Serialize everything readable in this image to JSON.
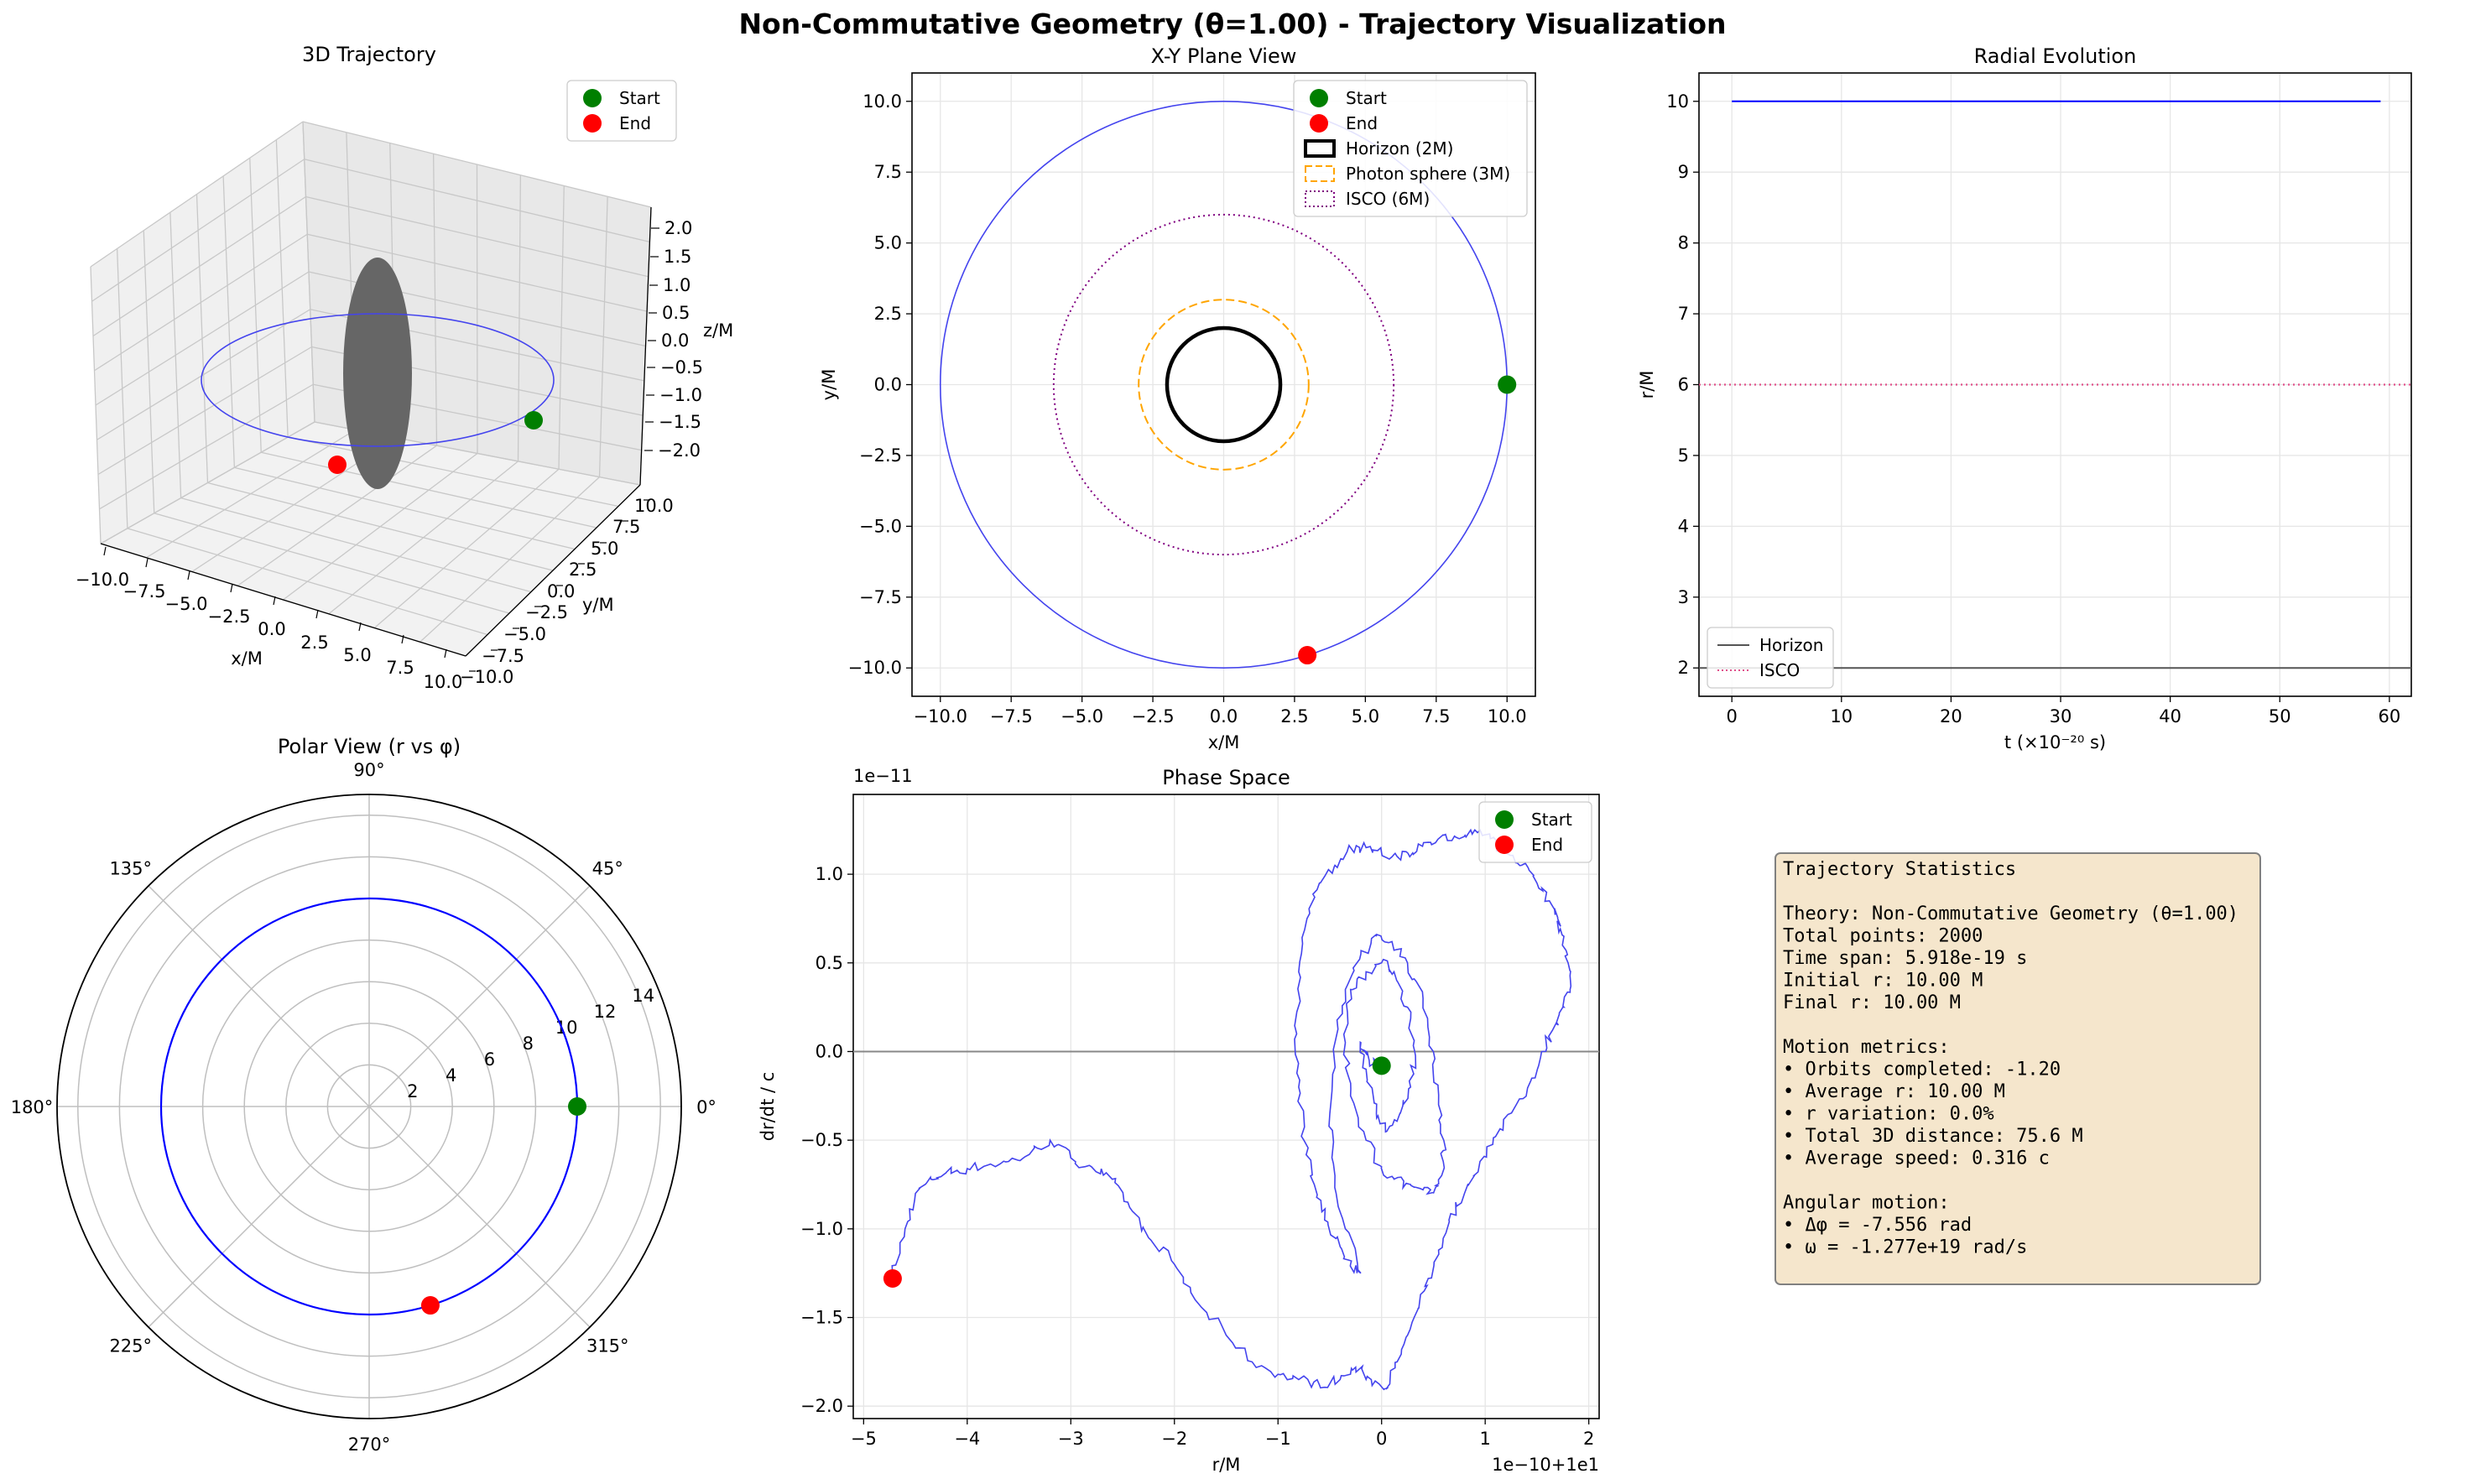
{
  "suptitle": "Non-Commutative Geometry (θ=1.00) - Trajectory Visualization",
  "colors": {
    "trajectory": "#4444ee",
    "start": "#007f00",
    "end": "#ff0000",
    "horizon": "#000000",
    "photon_sphere": "#ffa500",
    "isco": "#800080",
    "isco_radial": "#e0508a",
    "horizon_radial": "#555555",
    "grid": "#e6e6e6",
    "stats_bg": "#f5e6cc",
    "black_hole": "#666666"
  },
  "chart_data": [
    {
      "id": "traj3d",
      "type": "scatter",
      "title": "3D Trajectory",
      "xlabel": "x/M",
      "ylabel": "y/M",
      "zlabel": "z/M",
      "xticks": [
        "−10.0",
        "−7.5",
        "−5.0",
        "−2.5",
        "0.0",
        "2.5",
        "5.0",
        "7.5",
        "10.0"
      ],
      "yticks": [
        "−10.0",
        "−7.5",
        "−5.0",
        "−2.5",
        "0.0",
        "2.5",
        "5.0",
        "7.5",
        "10.0"
      ],
      "zticks": [
        "−2.0",
        "−1.5",
        "−1.0",
        "−0.5",
        "0.0",
        "0.5",
        "1.0",
        "1.5",
        "2.0"
      ],
      "xlim": [
        -10,
        10
      ],
      "ylim": [
        -10,
        10
      ],
      "zlim": [
        -2,
        2
      ],
      "orbit_radius": 10,
      "start": {
        "x": 10,
        "y": 0,
        "z": 0
      },
      "end": {
        "x": 2.95,
        "y": -9.55,
        "z": 0
      },
      "legend": [
        "Start",
        "End"
      ]
    },
    {
      "id": "xy",
      "type": "line",
      "title": "X-Y Plane View",
      "xlabel": "x/M",
      "ylabel": "y/M",
      "xticks": [
        "−10.0",
        "−7.5",
        "−5.0",
        "−2.5",
        "0.0",
        "2.5",
        "5.0",
        "7.5",
        "10.0"
      ],
      "yticks": [
        "−10.0",
        "−7.5",
        "−5.0",
        "−2.5",
        "0.0",
        "2.5",
        "5.0",
        "7.5",
        "10.0"
      ],
      "xlim": [
        -11,
        11
      ],
      "ylim": [
        -11,
        11
      ],
      "orbit_radius": 10,
      "horizon_radius": 2,
      "photon_radius": 3,
      "isco_radius": 6,
      "start": {
        "x": 10,
        "y": 0
      },
      "end": {
        "x": 2.95,
        "y": -9.55
      },
      "legend": [
        "Start",
        "End",
        "Horizon (2M)",
        "Photon sphere (3M)",
        "ISCO (6M)"
      ]
    },
    {
      "id": "radial",
      "type": "line",
      "title": "Radial Evolution",
      "xlabel": "t (×10⁻²⁰ s)",
      "ylabel": "r/M",
      "xticks": [
        "0",
        "10",
        "20",
        "30",
        "40",
        "50",
        "60"
      ],
      "yticks": [
        "2",
        "3",
        "4",
        "5",
        "6",
        "7",
        "8",
        "9",
        "10"
      ],
      "xlim": [
        -3,
        62
      ],
      "ylim": [
        1.6,
        10.4
      ],
      "series": [
        {
          "name": "",
          "x": [
            0,
            59.2
          ],
          "y": [
            10,
            10
          ]
        },
        {
          "name": "Horizon",
          "x": [
            -3,
            62
          ],
          "y": [
            2,
            2
          ]
        },
        {
          "name": "ISCO",
          "x": [
            -3,
            62
          ],
          "y": [
            6,
            6
          ]
        }
      ],
      "legend": [
        "Horizon",
        "ISCO"
      ]
    },
    {
      "id": "polar",
      "type": "line",
      "title": "Polar View (r vs φ)",
      "angle_labels": [
        "0°",
        "45°",
        "90°",
        "135°",
        "180°",
        "225°",
        "270°",
        "315°"
      ],
      "radial_ticks": [
        "2",
        "4",
        "6",
        "8",
        "10",
        "12",
        "14"
      ],
      "rmax": 15,
      "r": 10,
      "phi_start_deg": 0,
      "phi_end_deg": -432.9,
      "end_phi_deg": -72.9
    },
    {
      "id": "phase",
      "type": "line",
      "title": "Phase Space",
      "xlabel": "r/M",
      "ylabel": "dr/dt / c",
      "x_offset_label": "1e−10+1e1",
      "y_offset_label": "1e−11",
      "xticks": [
        "−5",
        "−4",
        "−3",
        "−2",
        "−1",
        "0",
        "1",
        "2"
      ],
      "yticks": [
        "−2.0",
        "−1.5",
        "−1.0",
        "−0.5",
        "0.0",
        "0.5",
        "1.0"
      ],
      "xlim": [
        -5.1,
        2.1
      ],
      "ylim": [
        -2.07,
        1.45
      ],
      "x": [
        -4.72,
        -4.6,
        -4.5,
        -4.35,
        -4.2,
        -4.0,
        -3.8,
        -3.6,
        -3.4,
        -3.2,
        -3.0,
        -2.8,
        -2.6,
        -2.45,
        -2.25,
        -2.0,
        -1.8,
        -1.5,
        -1.25,
        -1.0,
        -0.8,
        -0.6,
        -0.4,
        -0.25,
        -0.1,
        0.05,
        0.15,
        0.25,
        0.35,
        0.45,
        0.55,
        0.65,
        0.8,
        0.95,
        1.1,
        1.3,
        1.45,
        1.55,
        1.65,
        1.75,
        1.82,
        1.8,
        1.76,
        1.7,
        1.62,
        1.5,
        1.35,
        1.2,
        1.05,
        0.9,
        0.75,
        0.6,
        0.45,
        0.3,
        0.15,
        0.0,
        -0.15,
        -0.3,
        -0.45,
        -0.6,
        -0.72,
        -0.8,
        -0.82,
        -0.8,
        -0.75,
        -0.65,
        -0.55,
        -0.4,
        -0.3,
        -0.2,
        -0.35,
        -0.45,
        -0.5,
        -0.45,
        -0.35,
        -0.2,
        -0.05,
        0.1,
        0.25,
        0.4,
        0.5,
        0.55,
        0.6,
        0.58,
        0.5,
        0.4,
        0.28,
        0.12,
        0.0,
        -0.15,
        -0.3,
        -0.35,
        -0.3,
        -0.15,
        0.0,
        0.12,
        0.25,
        0.32,
        0.28,
        0.18,
        0.05,
        -0.05,
        -0.15,
        -0.2,
        -0.12,
        -0.02
      ],
      "y": [
        -1.28,
        -1.0,
        -0.8,
        -0.72,
        -0.68,
        -0.66,
        -0.64,
        -0.62,
        -0.58,
        -0.5,
        -0.6,
        -0.65,
        -0.72,
        -0.85,
        -1.05,
        -1.2,
        -1.4,
        -1.6,
        -1.75,
        -1.82,
        -1.85,
        -1.88,
        -1.85,
        -1.78,
        -1.85,
        -1.9,
        -1.75,
        -1.6,
        -1.45,
        -1.28,
        -1.12,
        -0.95,
        -0.8,
        -0.62,
        -0.48,
        -0.3,
        -0.15,
        0.0,
        0.12,
        0.25,
        0.35,
        0.5,
        0.65,
        0.75,
        0.85,
        0.95,
        1.05,
        1.12,
        1.2,
        1.25,
        1.2,
        1.22,
        1.18,
        1.12,
        1.1,
        1.12,
        1.15,
        1.15,
        1.05,
        0.95,
        0.75,
        0.45,
        0.1,
        -0.2,
        -0.5,
        -0.75,
        -0.95,
        -1.1,
        -1.2,
        -1.25,
        -1.0,
        -0.7,
        -0.35,
        0.05,
        0.35,
        0.55,
        0.65,
        0.62,
        0.5,
        0.3,
        0.0,
        -0.3,
        -0.5,
        -0.7,
        -0.8,
        -0.78,
        -0.75,
        -0.72,
        -0.65,
        -0.5,
        -0.25,
        0.05,
        0.35,
        0.45,
        0.5,
        0.45,
        0.25,
        0.0,
        -0.2,
        -0.35,
        -0.45,
        -0.35,
        -0.1,
        0.05,
        -0.05,
        -0.08
      ],
      "start": {
        "x": 0.0,
        "y": -0.08
      },
      "end": {
        "x": -4.72,
        "y": -1.28
      },
      "legend": [
        "Start",
        "End"
      ]
    }
  ],
  "stats_lines": [
    "Trajectory Statistics",
    "",
    "Theory: Non-Commutative Geometry (θ=1.00)",
    "Total points: 2000",
    "Time span: 5.918e-19 s",
    "Initial r: 10.00 M",
    "Final r: 10.00 M",
    "",
    "Motion metrics:",
    "• Orbits completed: -1.20",
    "• Average r: 10.00 M",
    "• r variation: 0.0%",
    "• Total 3D distance: 75.6 M",
    "• Average speed: 0.316 c",
    "",
    "Angular motion:",
    "• Δφ = -7.556 rad",
    "• ω = -1.277e+19 rad/s"
  ]
}
